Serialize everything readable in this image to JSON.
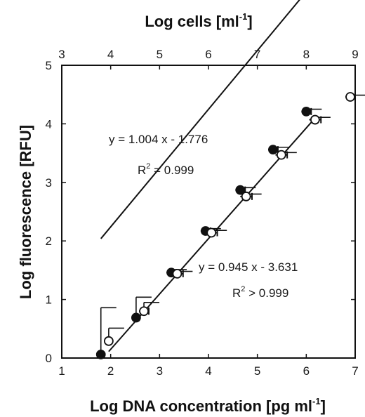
{
  "chart_data": {
    "type": "scatter",
    "title": "",
    "xlabel": "Log DNA concentration [pg ml",
    "xlabel_sup": "-1",
    "xlabel_close": "]",
    "x2label": "Log cells [ml",
    "x2label_sup": "-1",
    "x2label_close": "]",
    "ylabel": "Log fluorescence [RFU]",
    "xlim": [
      1,
      7
    ],
    "ylim": [
      0,
      5
    ],
    "x2lim": [
      3,
      9
    ],
    "xticks": [
      "1",
      "2",
      "3",
      "4",
      "5",
      "6",
      "7"
    ],
    "x2ticks": [
      "3",
      "4",
      "5",
      "6",
      "7",
      "8",
      "9"
    ],
    "yticks": [
      "0",
      "1",
      "2",
      "3",
      "4",
      "5"
    ],
    "grid": false,
    "series": [
      {
        "marker": "filled",
        "points": [
          {
            "x": 1.8,
            "y": 0.06,
            "xerr": 0.05,
            "yerr": 0.8
          },
          {
            "x": 2.52,
            "y": 0.69,
            "xerr": 0.06,
            "yerr": 0.35
          },
          {
            "x": 3.24,
            "y": 1.46,
            "xerr": 0.1,
            "yerr": 0.05
          },
          {
            "x": 3.94,
            "y": 2.17,
            "xerr": 0.1,
            "yerr": 0.04
          },
          {
            "x": 4.65,
            "y": 2.87,
            "xerr": 0.1,
            "yerr": 0.04
          },
          {
            "x": 5.32,
            "y": 3.56,
            "xerr": 0.1,
            "yerr": 0.04
          },
          {
            "x": 6.0,
            "y": 4.21,
            "xerr": 0.1,
            "yerr": 0.04
          }
        ],
        "fit": {
          "slope": 1.004,
          "intercept": -1.776,
          "xrange": [
            1.8,
            6.0
          ]
        }
      },
      {
        "marker": "open",
        "points": [
          {
            "x": 1.96,
            "y": 0.29,
            "xerr": 0.05,
            "yerr": 0.22
          },
          {
            "x": 2.68,
            "y": 0.8,
            "xerr": 0.1,
            "yerr": 0.15
          },
          {
            "x": 3.36,
            "y": 1.44,
            "xerr": 0.12,
            "yerr": 0.04
          },
          {
            "x": 4.06,
            "y": 2.14,
            "xerr": 0.12,
            "yerr": 0.04
          },
          {
            "x": 4.77,
            "y": 2.76,
            "xerr": 0.12,
            "yerr": 0.04
          },
          {
            "x": 5.49,
            "y": 3.47,
            "xerr": 0.12,
            "yerr": 0.04
          },
          {
            "x": 6.18,
            "y": 4.07,
            "xerr": 0.12,
            "yerr": 0.04
          },
          {
            "x": 6.9,
            "y": 4.46,
            "xerr": 0.1,
            "yerr": 0.03
          }
        ],
        "fit": {
          "slope": 0.945,
          "intercept": -3.631,
          "x2range": [
            3.96,
            8.2
          ]
        }
      }
    ],
    "annotations": [
      {
        "text": "y = 1.004 x - 1.776",
        "r2_prefix": "R",
        "r2_sup": "2",
        "r2_value": " = 0.999"
      },
      {
        "text": "y = 0.945 x - 3.631",
        "r2_prefix": "R",
        "r2_sup": "2",
        "r2_value": "  > 0.999"
      }
    ]
  },
  "colors": {
    "ink": "#111111",
    "open_fill": "#ffffff",
    "filled_fill": "#111111"
  }
}
